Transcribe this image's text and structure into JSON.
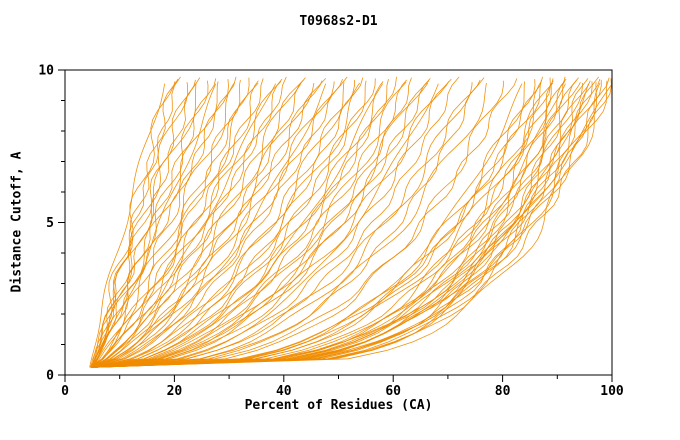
{
  "chart_data": {
    "type": "line",
    "title": "T0968s2-D1",
    "xlabel": "Percent of Residues (CA)",
    "ylabel": "Distance Cutoff, A",
    "xlim": [
      0,
      100
    ],
    "ylim": [
      0,
      10
    ],
    "x_major_ticks": [
      0,
      20,
      40,
      60,
      80,
      100
    ],
    "x_minor_step": 10,
    "y_major_ticks": [
      0,
      5,
      10
    ],
    "y_minor_step": 1,
    "grid": false,
    "legend": "none",
    "line_color": "#f08c00",
    "axis_color": "#000000",
    "curve_model": {
      "description": "One curve per model: cumulative percent of CA residues (x) under distance cutoff (y). Each curve rises monotonically from (x0, y_start) to (x_top, y_top): x(y) = x0 + (x_top - x0) * t^q with t = (y - y_start)/(y_top - y_start), plus small wiggle.",
      "y_start": 0.25,
      "y_top_base": 9.55
    },
    "curves": [
      [
        18,
        1.1,
        4.5
      ],
      [
        19,
        1.0,
        5.0
      ],
      [
        20,
        0.95,
        4.8
      ],
      [
        21,
        1.05,
        5.2
      ],
      [
        22,
        0.9,
        4.6
      ],
      [
        23,
        1.0,
        5.0
      ],
      [
        24,
        0.92,
        5.3
      ],
      [
        25,
        1.08,
        4.7
      ],
      [
        26,
        0.88,
        5.0
      ],
      [
        27,
        0.97,
        5.1
      ],
      [
        28,
        0.9,
        4.9
      ],
      [
        29,
        1.02,
        5.0
      ],
      [
        30,
        0.85,
        5.2
      ],
      [
        31,
        0.95,
        4.6
      ],
      [
        32,
        0.88,
        5.0
      ],
      [
        33,
        0.8,
        5.0
      ],
      [
        34,
        0.75,
        4.8
      ],
      [
        35,
        0.82,
        5.1
      ],
      [
        36,
        0.7,
        5.0
      ],
      [
        37,
        0.78,
        4.7
      ],
      [
        38,
        0.72,
        5.2
      ],
      [
        39,
        0.8,
        5.0
      ],
      [
        40,
        0.68,
        4.9
      ],
      [
        41,
        0.75,
        5.0
      ],
      [
        42,
        0.65,
        5.1
      ],
      [
        43,
        0.72,
        4.8
      ],
      [
        44,
        0.62,
        5.0
      ],
      [
        45,
        0.7,
        5.2
      ],
      [
        46,
        0.6,
        4.7
      ],
      [
        47,
        0.68,
        5.0
      ],
      [
        48,
        0.58,
        5.1
      ],
      [
        49,
        0.65,
        4.9
      ],
      [
        50,
        0.6,
        5.0
      ],
      [
        51,
        0.58,
        5.0
      ],
      [
        52,
        0.52,
        4.8
      ],
      [
        53,
        0.56,
        5.1
      ],
      [
        54,
        0.5,
        5.0
      ],
      [
        55,
        0.55,
        4.9
      ],
      [
        56,
        0.48,
        5.2
      ],
      [
        57,
        0.52,
        5.0
      ],
      [
        58,
        0.46,
        4.7
      ],
      [
        59,
        0.5,
        5.0
      ],
      [
        60,
        0.45,
        5.1
      ],
      [
        61,
        0.5,
        4.9
      ],
      [
        62,
        0.44,
        5.0
      ],
      [
        63,
        0.48,
        5.2
      ],
      [
        64,
        0.42,
        4.8
      ],
      [
        65,
        0.46,
        5.0
      ],
      [
        66,
        0.42,
        5.1
      ],
      [
        67,
        0.45,
        4.9
      ],
      [
        68,
        0.4,
        5.0
      ],
      [
        69,
        0.44,
        5.0
      ],
      [
        70,
        0.4,
        5.2
      ],
      [
        72,
        0.38,
        4.8
      ],
      [
        74,
        0.36,
        5.0
      ],
      [
        75,
        0.4,
        5.1
      ],
      [
        76,
        0.34,
        4.9
      ],
      [
        78,
        0.37,
        5.0
      ],
      [
        80,
        0.32,
        5.0
      ],
      [
        82,
        0.35,
        4.8
      ],
      [
        84,
        0.3,
        5.0
      ],
      [
        85,
        0.3,
        5.0
      ],
      [
        86,
        0.28,
        4.9
      ],
      [
        87,
        0.3,
        5.1
      ],
      [
        88,
        0.26,
        5.0
      ],
      [
        88,
        0.32,
        4.8
      ],
      [
        89,
        0.25,
        5.0
      ],
      [
        89,
        0.3,
        5.2
      ],
      [
        90,
        0.24,
        4.9
      ],
      [
        90,
        0.28,
        5.0
      ],
      [
        91,
        0.26,
        5.0
      ],
      [
        91,
        0.22,
        4.8
      ],
      [
        92,
        0.27,
        5.1
      ],
      [
        92,
        0.23,
        5.0
      ],
      [
        93,
        0.25,
        4.9
      ],
      [
        93,
        0.21,
        5.0
      ],
      [
        94,
        0.26,
        5.0
      ],
      [
        94,
        0.22,
        5.2
      ],
      [
        95,
        0.24,
        4.8
      ],
      [
        95,
        0.2,
        5.0
      ],
      [
        96,
        0.25,
        5.0
      ],
      [
        96,
        0.21,
        4.9
      ],
      [
        97,
        0.23,
        5.0
      ],
      [
        97,
        0.27,
        5.1
      ],
      [
        98,
        0.22,
        5.0
      ],
      [
        98,
        0.26,
        4.8
      ],
      [
        99,
        0.24,
        5.0
      ],
      [
        99,
        0.2,
        5.0
      ],
      [
        100,
        0.25,
        5.0
      ],
      [
        100,
        0.22,
        4.9
      ],
      [
        100,
        0.3,
        5.1
      ]
    ]
  }
}
